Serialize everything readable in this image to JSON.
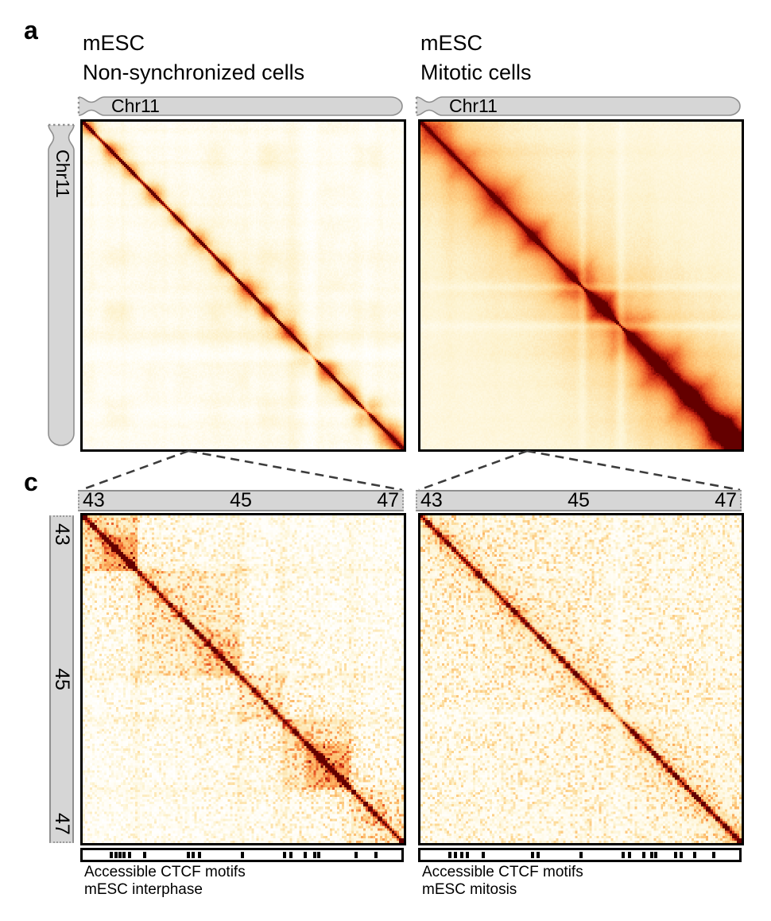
{
  "panel_a": {
    "label": "a",
    "left": {
      "title_line1": "mESC",
      "title_line2": "Non-synchronized cells",
      "chrom_label": "Chr11"
    },
    "right": {
      "title_line1": "mESC",
      "title_line2": "Mitotic cells",
      "chrom_label": "Chr11"
    },
    "side_chrom_label": "Chr11"
  },
  "panel_c": {
    "label": "c",
    "tick_labels": [
      "43",
      "45",
      "47"
    ],
    "left": {
      "caption_line1": "Accessible CTCF motifs",
      "caption_line2": "mESC interphase",
      "ctcf_ticks": [
        0.09,
        0.104,
        0.118,
        0.129,
        0.146,
        0.195,
        0.331,
        0.347,
        0.366,
        0.502,
        0.633,
        0.654,
        0.698,
        0.727,
        0.741,
        0.858,
        0.92
      ]
    },
    "right": {
      "caption_line1": "Accessible CTCF motifs",
      "caption_line2": "mESC mitosis",
      "ctcf_ticks": [
        0.092,
        0.109,
        0.129,
        0.147,
        0.197,
        0.351,
        0.368,
        0.504,
        0.635,
        0.655,
        0.7,
        0.725,
        0.739,
        0.801,
        0.818,
        0.86,
        0.921
      ]
    }
  },
  "colors": {
    "ideogram_fill": "#d6d6d6",
    "ideogram_stroke": "#8f8f8f",
    "map_border": "#000000",
    "connector": "#3c3c3c",
    "diagonal_dark_red": "#8f1005"
  },
  "heatmaps": {
    "colormap": [
      [
        0.0,
        [
          255,
          255,
          255
        ]
      ],
      [
        0.08,
        [
          255,
          252,
          240
        ]
      ],
      [
        0.22,
        [
          253,
          242,
          206
        ]
      ],
      [
        0.38,
        [
          253,
          216,
          148
        ]
      ],
      [
        0.52,
        [
          252,
          180,
          100
        ]
      ],
      [
        0.65,
        [
          247,
          134,
          64
        ]
      ],
      [
        0.78,
        [
          230,
          85,
          38
        ]
      ],
      [
        0.88,
        [
          199,
          40,
          18
        ]
      ],
      [
        0.95,
        [
          150,
          12,
          8
        ]
      ],
      [
        1.0,
        [
          100,
          0,
          0
        ]
      ]
    ],
    "maps": [
      {
        "id": "hic-nonsync",
        "type": "interphase_full",
        "n": 202,
        "seed": 11,
        "stripes": 42,
        "noise": 0.07,
        "blobs": [
          [
            0.015,
            4,
            0.45
          ],
          [
            0.085,
            4,
            0.4
          ],
          [
            0.15,
            4,
            0.36
          ],
          [
            0.22,
            5,
            0.4
          ],
          [
            0.295,
            4,
            0.36
          ],
          [
            0.36,
            5,
            0.42
          ],
          [
            0.44,
            4,
            0.38
          ],
          [
            0.515,
            6,
            0.48
          ],
          [
            0.575,
            4,
            0.44
          ],
          [
            0.64,
            5,
            0.44
          ],
          [
            0.7,
            5,
            0.48
          ],
          [
            0.76,
            6,
            0.48
          ],
          [
            0.83,
            5,
            0.44
          ],
          [
            0.895,
            6,
            0.48
          ],
          [
            0.96,
            6,
            0.52
          ],
          [
            1.0,
            5,
            0.5
          ]
        ],
        "crosses": [
          [
            0.715,
            2.5,
            0.45
          ],
          [
            0.885,
            2.0,
            0.35
          ]
        ]
      },
      {
        "id": "hic-mitotic",
        "type": "mitotic_full",
        "n": 202,
        "seed": 23,
        "stripes": 36,
        "noise": 0.05,
        "blobs": [
          [
            0.03,
            8,
            0.28
          ],
          [
            0.13,
            6,
            0.2
          ],
          [
            0.24,
            9,
            0.28
          ],
          [
            0.35,
            7,
            0.33
          ],
          [
            0.48,
            8,
            0.26
          ],
          [
            0.565,
            7,
            0.33
          ],
          [
            0.655,
            7,
            0.26
          ],
          [
            0.75,
            9,
            0.3
          ],
          [
            0.845,
            8,
            0.33
          ],
          [
            0.94,
            9,
            0.36
          ],
          [
            1.0,
            8,
            0.38
          ]
        ],
        "crosses": [
          [
            0.505,
            2.0,
            0.28
          ],
          [
            0.625,
            2.0,
            0.28
          ]
        ]
      },
      {
        "id": "hic-zoom-interphase",
        "type": "interphase_zoom",
        "n": 135,
        "seed": 37,
        "noise": 0.06,
        "tad_boundaries": [
          0,
          0.165,
          0.49,
          0.625,
          0.84,
          1.0
        ],
        "tad_amps": [
          0.26,
          0.17,
          0.15,
          0.22,
          0.12
        ],
        "squares": [
          [
            0.055,
            0.165,
            0.18
          ],
          [
            0.345,
            0.49,
            0.1
          ],
          [
            0.695,
            0.835,
            0.22
          ],
          [
            0.885,
            0.955,
            0.1
          ]
        ],
        "dots": [
          [
            0.165,
            0.49,
            0.16
          ],
          [
            0.0,
            0.165,
            0.14
          ],
          [
            0.49,
            0.625,
            0.12
          ]
        ],
        "blobs": [],
        "crosses": []
      },
      {
        "id": "hic-zoom-mitotic",
        "type": "mitotic_zoom",
        "n": 135,
        "seed": 51,
        "noise": 0.06,
        "blobs": [
          [
            0.07,
            3,
            0.1
          ],
          [
            0.3,
            3,
            0.09
          ],
          [
            0.5,
            3,
            0.1
          ],
          [
            0.7,
            3,
            0.09
          ],
          [
            0.88,
            4,
            0.12
          ],
          [
            0.99,
            4,
            0.15
          ]
        ],
        "crosses": [
          [
            0.615,
            1.8,
            0.4
          ]
        ]
      }
    ]
  }
}
